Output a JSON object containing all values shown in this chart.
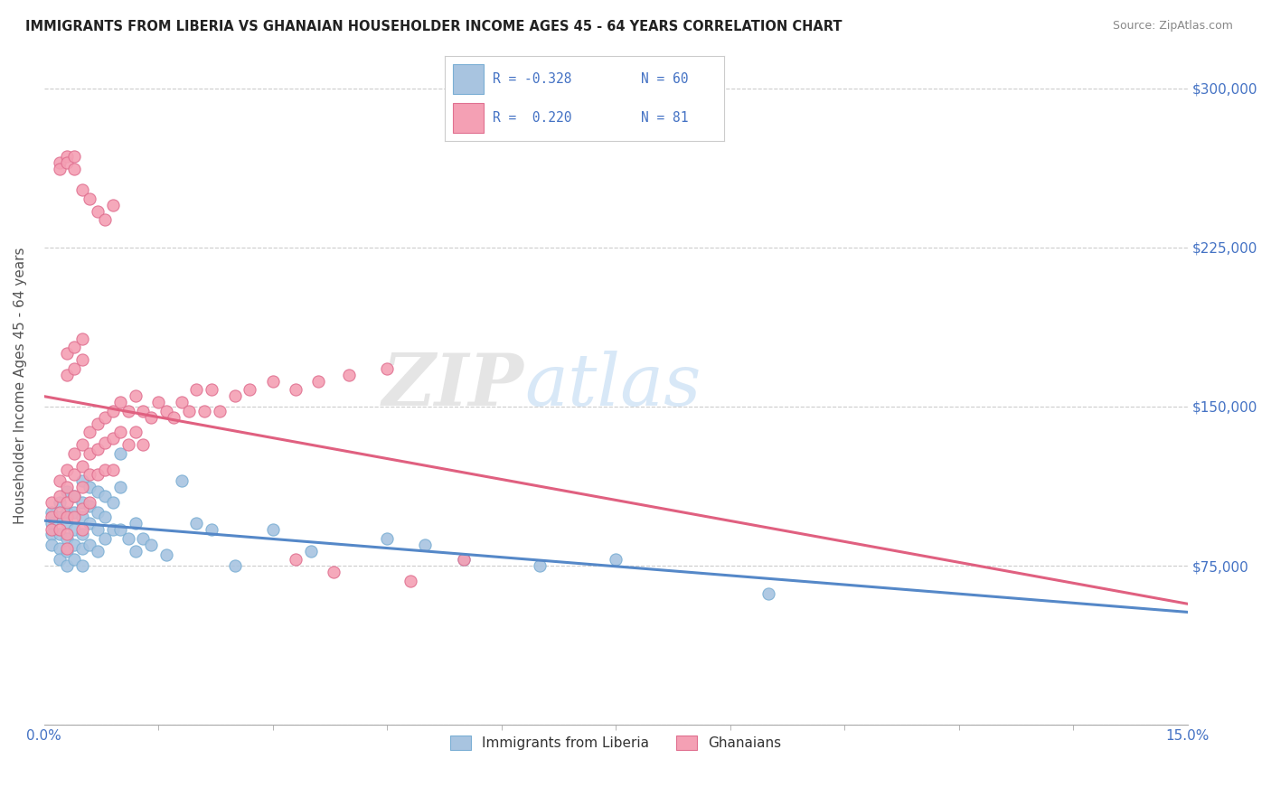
{
  "title": "IMMIGRANTS FROM LIBERIA VS GHANAIAN HOUSEHOLDER INCOME AGES 45 - 64 YEARS CORRELATION CHART",
  "source": "Source: ZipAtlas.com",
  "ylabel": "Householder Income Ages 45 - 64 years",
  "yticks": [
    0,
    75000,
    150000,
    225000,
    300000
  ],
  "ytick_labels": [
    "",
    "$75,000",
    "$150,000",
    "$225,000",
    "$300,000"
  ],
  "xmin": 0.0,
  "xmax": 0.15,
  "ymin": 0,
  "ymax": 320000,
  "color_liberia": "#a8c4e0",
  "color_liberia_edge": "#7bafd4",
  "color_liberia_line": "#5588c8",
  "color_ghana": "#f4a0b4",
  "color_ghana_edge": "#e07090",
  "color_ghana_line": "#e06080",
  "color_text_blue": "#4472c4",
  "watermark": "ZIPatlas",
  "liberia_x": [
    0.001,
    0.001,
    0.001,
    0.001,
    0.002,
    0.002,
    0.002,
    0.002,
    0.002,
    0.003,
    0.003,
    0.003,
    0.003,
    0.003,
    0.003,
    0.004,
    0.004,
    0.004,
    0.004,
    0.004,
    0.005,
    0.005,
    0.005,
    0.005,
    0.005,
    0.005,
    0.006,
    0.006,
    0.006,
    0.006,
    0.007,
    0.007,
    0.007,
    0.007,
    0.008,
    0.008,
    0.008,
    0.009,
    0.009,
    0.01,
    0.01,
    0.01,
    0.011,
    0.012,
    0.012,
    0.013,
    0.014,
    0.016,
    0.018,
    0.02,
    0.022,
    0.025,
    0.03,
    0.035,
    0.045,
    0.05,
    0.055,
    0.065,
    0.075,
    0.095
  ],
  "liberia_y": [
    100000,
    95000,
    90000,
    85000,
    105000,
    98000,
    90000,
    83000,
    78000,
    110000,
    100000,
    95000,
    88000,
    82000,
    75000,
    108000,
    100000,
    92000,
    85000,
    78000,
    115000,
    105000,
    98000,
    90000,
    83000,
    75000,
    112000,
    103000,
    95000,
    85000,
    110000,
    100000,
    92000,
    82000,
    108000,
    98000,
    88000,
    105000,
    92000,
    128000,
    112000,
    92000,
    88000,
    95000,
    82000,
    88000,
    85000,
    80000,
    115000,
    95000,
    92000,
    75000,
    92000,
    82000,
    88000,
    85000,
    78000,
    75000,
    78000,
    62000
  ],
  "ghana_x": [
    0.001,
    0.001,
    0.001,
    0.002,
    0.002,
    0.002,
    0.002,
    0.003,
    0.003,
    0.003,
    0.003,
    0.003,
    0.003,
    0.004,
    0.004,
    0.004,
    0.004,
    0.005,
    0.005,
    0.005,
    0.005,
    0.005,
    0.006,
    0.006,
    0.006,
    0.006,
    0.007,
    0.007,
    0.007,
    0.008,
    0.008,
    0.008,
    0.009,
    0.009,
    0.009,
    0.01,
    0.01,
    0.011,
    0.011,
    0.012,
    0.012,
    0.013,
    0.013,
    0.014,
    0.015,
    0.016,
    0.017,
    0.018,
    0.019,
    0.02,
    0.021,
    0.022,
    0.023,
    0.025,
    0.027,
    0.03,
    0.033,
    0.036,
    0.04,
    0.045,
    0.003,
    0.003,
    0.004,
    0.004,
    0.005,
    0.005,
    0.033,
    0.038,
    0.048,
    0.055,
    0.002,
    0.002,
    0.003,
    0.003,
    0.004,
    0.004,
    0.005,
    0.006,
    0.007,
    0.008,
    0.009
  ],
  "ghana_y": [
    105000,
    98000,
    92000,
    115000,
    108000,
    100000,
    92000,
    120000,
    112000,
    105000,
    98000,
    90000,
    83000,
    128000,
    118000,
    108000,
    98000,
    132000,
    122000,
    112000,
    102000,
    92000,
    138000,
    128000,
    118000,
    105000,
    142000,
    130000,
    118000,
    145000,
    133000,
    120000,
    148000,
    135000,
    120000,
    152000,
    138000,
    148000,
    132000,
    155000,
    138000,
    148000,
    132000,
    145000,
    152000,
    148000,
    145000,
    152000,
    148000,
    158000,
    148000,
    158000,
    148000,
    155000,
    158000,
    162000,
    158000,
    162000,
    165000,
    168000,
    175000,
    165000,
    178000,
    168000,
    182000,
    172000,
    78000,
    72000,
    68000,
    78000,
    265000,
    262000,
    268000,
    265000,
    262000,
    268000,
    252000,
    248000,
    242000,
    238000,
    245000
  ]
}
